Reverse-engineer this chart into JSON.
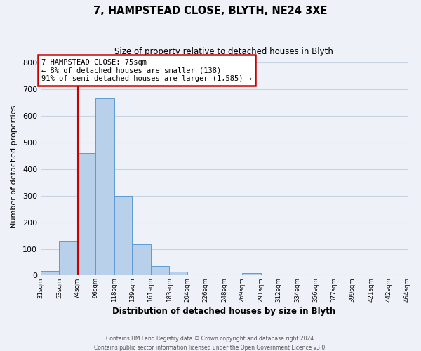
{
  "title": "7, HAMPSTEAD CLOSE, BLYTH, NE24 3XE",
  "subtitle": "Size of property relative to detached houses in Blyth",
  "xlabel": "Distribution of detached houses by size in Blyth",
  "ylabel": "Number of detached properties",
  "bin_edges": [
    31,
    53,
    74,
    96,
    118,
    139,
    161,
    183,
    204,
    226,
    248,
    269,
    291,
    312,
    334,
    356,
    377,
    399,
    421,
    442,
    464
  ],
  "bin_heights": [
    18,
    128,
    460,
    665,
    300,
    118,
    35,
    13,
    0,
    0,
    0,
    10,
    0,
    0,
    0,
    0,
    0,
    0,
    0,
    0
  ],
  "bar_facecolor": "#b8d0ea",
  "bar_edgecolor": "#5b9bd5",
  "grid_color": "#c8d4e4",
  "background_color": "#eef2f8",
  "vline_x": 75,
  "vline_color": "#cc0000",
  "annotation_title": "7 HAMPSTEAD CLOSE: 75sqm",
  "annotation_line1": "← 8% of detached houses are smaller (138)",
  "annotation_line2": "91% of semi-detached houses are larger (1,585) →",
  "annotation_box_color": "#cc0000",
  "ylim": [
    0,
    820
  ],
  "xtick_labels": [
    "31sqm",
    "53sqm",
    "74sqm",
    "96sqm",
    "118sqm",
    "139sqm",
    "161sqm",
    "183sqm",
    "204sqm",
    "226sqm",
    "248sqm",
    "269sqm",
    "291sqm",
    "312sqm",
    "334sqm",
    "356sqm",
    "377sqm",
    "399sqm",
    "421sqm",
    "442sqm",
    "464sqm"
  ],
  "footer_line1": "Contains HM Land Registry data © Crown copyright and database right 2024.",
  "footer_line2": "Contains public sector information licensed under the Open Government Licence v3.0."
}
